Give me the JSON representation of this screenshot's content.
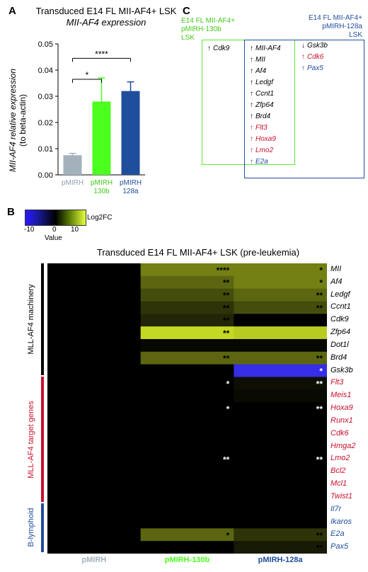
{
  "panel_a": {
    "letter": "A",
    "title_line1": "Transduced E14 FL MII-AF4+ LSK",
    "title_line2": "MII-AF4 expression",
    "ylabel_line1": "MII-AF4 relative expression",
    "ylabel_line2": "(to beta-actin)",
    "significance": [
      "*",
      "****"
    ]
  },
  "panel_b": {
    "letter": "B",
    "title": "Transduced E14 FL MII-AF4+ LSK (pre-leukemia)",
    "legend_label": "Log2FC",
    "legend_axis_title": "Value",
    "legend_ticks": [
      "-10",
      "0",
      "10"
    ],
    "group_labels": [
      "MLL-AF4 machinery",
      "MLL-AF4 target genes",
      "B-lymphoid"
    ]
  },
  "panel_c": {
    "letter": "C",
    "green_label": [
      "E14 FL MII-AF4+",
      "pMIRH-130b",
      "LSK"
    ],
    "blue_label": [
      "E14 FL MII-AF4+",
      "pMIRH-128a",
      "LSK"
    ],
    "green_only": [
      {
        "arrow": "↑",
        "gene": "Cdk9",
        "color": "#000000"
      }
    ],
    "overlap": [
      {
        "arrow": "↑",
        "gene": "MII-AF4",
        "color": "#000000"
      },
      {
        "arrow": "↑",
        "gene": "MII",
        "color": "#000000"
      },
      {
        "arrow": "↑",
        "gene": "Af4",
        "color": "#000000"
      },
      {
        "arrow": "↑",
        "gene": "Ledgf",
        "color": "#000000"
      },
      {
        "arrow": "↑",
        "gene": "Ccnt1",
        "color": "#000000"
      },
      {
        "arrow": "↑",
        "gene": "Zfp64",
        "color": "#000000"
      },
      {
        "arrow": "↑",
        "gene": "Brd4",
        "color": "#000000"
      },
      {
        "arrow": "↑",
        "gene": "Flt3",
        "color": "#c8102e"
      },
      {
        "arrow": "↑",
        "gene": "Hoxa9",
        "color": "#c8102e"
      },
      {
        "arrow": "↑",
        "gene": "Lmo2",
        "color": "#c8102e"
      },
      {
        "arrow": "↑",
        "gene": "E2a",
        "color": "#1f4e9c"
      }
    ],
    "blue_only": [
      {
        "arrow": "↓",
        "gene": "Gsk3b",
        "color": "#000000"
      },
      {
        "arrow": "↑",
        "gene": "Cdk6",
        "color": "#c8102e"
      },
      {
        "arrow": "↑",
        "gene": "Pax5",
        "color": "#1f4e9c"
      }
    ]
  },
  "colors": {
    "pMIRH": "#a3b1bd",
    "pMIRH_130b": "#4cff1f",
    "pMIRH_128a": "#1f4e9c",
    "target_red": "#c8102e",
    "lymphoid_blue": "#1f4e9c"
  },
  "chart_data": [
    {
      "type": "bar",
      "categories": [
        "pMIRH",
        "pMIRH 130b",
        "pMIRH 128a"
      ],
      "values": [
        0.0075,
        0.028,
        0.032
      ],
      "errors": [
        0.0007,
        0.009,
        0.0035
      ],
      "ylim": [
        0,
        0.05
      ],
      "yticks": [
        "0.00",
        "0.01",
        "0.02",
        "0.03",
        "0.04",
        "0.05"
      ],
      "significance": [
        {
          "from": "pMIRH",
          "to": "pMIRH 130b",
          "label": "*"
        },
        {
          "from": "pMIRH",
          "to": "pMIRH 128a",
          "label": "****"
        }
      ]
    },
    {
      "type": "heatmap",
      "columns": [
        "pMIRH",
        "pMIRH-130b",
        "pMIRH-128a"
      ],
      "column_colors": [
        "#a3b1bd",
        "#4cff1f",
        "#1f4e9c"
      ],
      "color_range": [
        -10,
        10
      ],
      "rows": [
        {
          "gene": "MII",
          "group": 0,
          "values": [
            0,
            5,
            5
          ],
          "marks": [
            "",
            "****",
            "*"
          ]
        },
        {
          "gene": "Af4",
          "group": 0,
          "values": [
            0,
            4,
            5
          ],
          "marks": [
            "",
            "**",
            "*"
          ]
        },
        {
          "gene": "Ledgf",
          "group": 0,
          "values": [
            0,
            3,
            4
          ],
          "marks": [
            "",
            "**",
            "**"
          ]
        },
        {
          "gene": "Ccnt1",
          "group": 0,
          "values": [
            0,
            2,
            3
          ],
          "marks": [
            "",
            "**",
            "**"
          ]
        },
        {
          "gene": "Cdk9",
          "group": 0,
          "values": [
            0,
            1.5,
            0
          ],
          "marks": [
            "",
            "**",
            ""
          ]
        },
        {
          "gene": "Zfp64",
          "group": 0,
          "values": [
            0,
            8.5,
            8
          ],
          "marks": [
            "",
            "**",
            ""
          ]
        },
        {
          "gene": "Dot1l",
          "group": 0,
          "values": [
            0,
            0.3,
            0.3
          ],
          "marks": [
            "",
            "",
            ""
          ]
        },
        {
          "gene": "Brd4",
          "group": 0,
          "values": [
            0,
            4,
            4
          ],
          "marks": [
            "",
            "**",
            "**"
          ]
        },
        {
          "gene": "Gsk3b",
          "group": 0,
          "values": [
            0,
            0,
            -9
          ],
          "marks": [
            "",
            "",
            "*"
          ]
        },
        {
          "gene": "Flt3",
          "group": 1,
          "values": [
            0,
            0,
            0.6
          ],
          "marks": [
            "",
            "*",
            "**"
          ]
        },
        {
          "gene": "Meis1",
          "group": 1,
          "values": [
            0,
            0,
            0.4
          ],
          "marks": [
            "",
            "",
            ""
          ]
        },
        {
          "gene": "Hoxa9",
          "group": 1,
          "values": [
            0,
            0,
            0
          ],
          "marks": [
            "",
            "*",
            "**"
          ]
        },
        {
          "gene": "Runx1",
          "group": 1,
          "values": [
            0,
            0,
            0
          ],
          "marks": [
            "",
            "",
            ""
          ]
        },
        {
          "gene": "Cdk6",
          "group": 1,
          "values": [
            0,
            0,
            0
          ],
          "marks": [
            "",
            "",
            ""
          ]
        },
        {
          "gene": "Hmga2",
          "group": 1,
          "values": [
            0,
            0,
            0
          ],
          "marks": [
            "",
            "",
            ""
          ]
        },
        {
          "gene": "Lmo2",
          "group": 1,
          "values": [
            0,
            0,
            0
          ],
          "marks": [
            "",
            "**",
            "**"
          ]
        },
        {
          "gene": "Bcl2",
          "group": 1,
          "values": [
            0,
            0,
            0
          ],
          "marks": [
            "",
            "",
            ""
          ]
        },
        {
          "gene": "Mcl1",
          "group": 1,
          "values": [
            0,
            0,
            0
          ],
          "marks": [
            "",
            "",
            ""
          ]
        },
        {
          "gene": "Twist1",
          "group": 1,
          "values": [
            0,
            0,
            0
          ],
          "marks": [
            "",
            "",
            ""
          ]
        },
        {
          "gene": "Il7r",
          "group": 2,
          "values": [
            0,
            0,
            0
          ],
          "marks": [
            "",
            "",
            ""
          ]
        },
        {
          "gene": "Ikaros",
          "group": 2,
          "values": [
            0,
            0,
            0
          ],
          "marks": [
            "",
            "",
            ""
          ]
        },
        {
          "gene": "E2a",
          "group": 2,
          "values": [
            0,
            4,
            2
          ],
          "marks": [
            "",
            "*",
            "**"
          ]
        },
        {
          "gene": "Pax5",
          "group": 2,
          "values": [
            0,
            0,
            1
          ],
          "marks": [
            "",
            "",
            "**"
          ]
        }
      ]
    }
  ]
}
